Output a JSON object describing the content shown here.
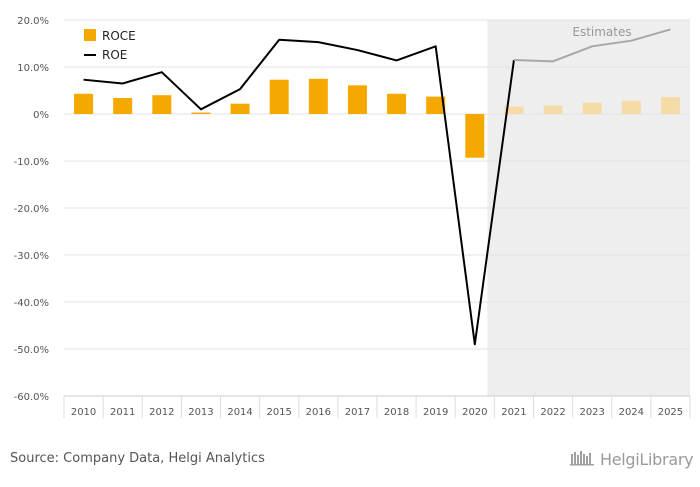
{
  "chart_data": {
    "type": "bar+line",
    "categories": [
      "2010",
      "2011",
      "2012",
      "2013",
      "2014",
      "2015",
      "2016",
      "2017",
      "2018",
      "2019",
      "2020",
      "2021",
      "2022",
      "2023",
      "2024",
      "2025"
    ],
    "series": [
      {
        "name": "ROCE",
        "type": "bar",
        "values": [
          4.3,
          3.4,
          4.0,
          0.3,
          2.2,
          7.3,
          7.5,
          6.1,
          4.3,
          3.7,
          -9.3,
          1.6,
          1.8,
          2.4,
          2.8,
          3.6
        ],
        "color": "#f5a800",
        "estimate_color": "#f5dca6"
      },
      {
        "name": "ROE",
        "type": "line",
        "values": [
          7.3,
          6.5,
          8.9,
          1.0,
          5.3,
          15.8,
          15.3,
          13.6,
          11.4,
          14.4,
          -49.0,
          11.5,
          11.2,
          14.4,
          15.6,
          18.0
        ],
        "color": "#000000",
        "estimate_color": "#a8a8a8"
      }
    ],
    "estimate_start_index": 11,
    "estimates_label": "Estimates",
    "ylim": [
      -60,
      20
    ],
    "yticks": [
      20,
      10,
      0,
      -10,
      -20,
      -30,
      -40,
      -50,
      -60
    ],
    "ytick_labels": [
      "20.0%",
      "10.0%",
      "0%",
      "-10.0%",
      "-20.0%",
      "-30.0%",
      "-40.0%",
      "-50.0%",
      "-60.0%"
    ],
    "legend_position": "top-left",
    "grid": true
  },
  "footer": {
    "source": "Source: Company Data, Helgi Analytics",
    "brand": "HelgiLibrary"
  }
}
